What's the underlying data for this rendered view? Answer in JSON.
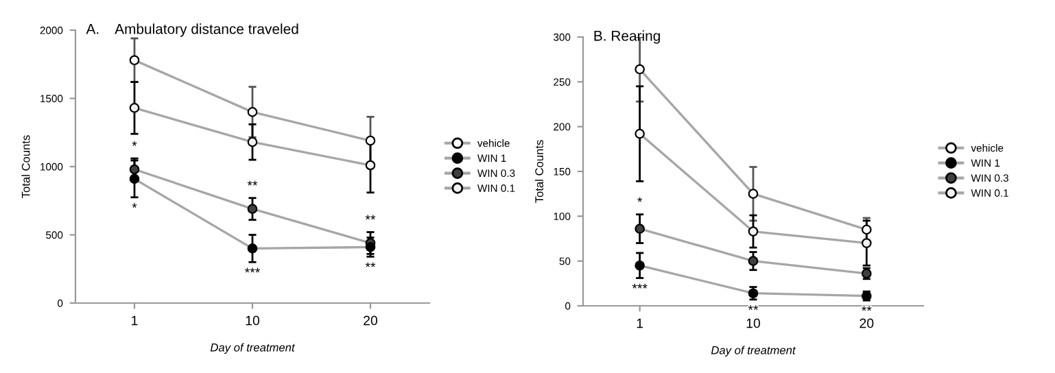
{
  "chart_data": [
    {
      "type": "line",
      "title": "A.    Ambulatory distance traveled",
      "xlabel": "Day of treatment",
      "ylabel": "Total Counts",
      "categories": [
        "1",
        "10",
        "20"
      ],
      "ylim": [
        0,
        2000
      ],
      "yticks": [
        0,
        500,
        1000,
        1500,
        2000
      ],
      "grid": false,
      "legend": "right",
      "marker": "circle",
      "line_style": "solid",
      "series": [
        {
          "name": "vehicle",
          "color": "#a6a6a6",
          "colors": [
            "#ffffff",
            "#ffffff",
            "#ffffff"
          ],
          "values": [
            1780,
            1400,
            1190
          ],
          "errors": [
            160,
            185,
            175
          ]
        },
        {
          "name": "WIN 1",
          "color": "#a6a6a6",
          "colors": [
            "#000000",
            "#000000",
            "#000000"
          ],
          "values": [
            910,
            400,
            410
          ],
          "errors": [
            135,
            100,
            70
          ]
        },
        {
          "name": "WIN 0.3",
          "color": "#a6a6a6",
          "colors": [
            "#404040",
            "#404040",
            "#404040"
          ],
          "values": [
            980,
            690,
            440
          ],
          "errors": [
            80,
            80,
            80
          ]
        },
        {
          "name": "WIN 0.1",
          "color": "#a6a6a6",
          "colors": [
            "#f2f2f2",
            "#f2f2f2",
            "#f2f2f2"
          ],
          "values": [
            1430,
            1180,
            1010
          ],
          "errors": [
            190,
            130,
            200
          ]
        }
      ],
      "annotations": [
        {
          "text": "*",
          "x": "1",
          "y": 1060
        },
        {
          "text": "*",
          "x": "1",
          "y": 775
        },
        {
          "text": "**",
          "x": "10",
          "y": 770
        },
        {
          "text": "***",
          "x": "10",
          "y": 300
        },
        {
          "text": "**",
          "x": "20",
          "y": 520
        },
        {
          "text": "**",
          "x": "20",
          "y": 340
        }
      ]
    },
    {
      "type": "line",
      "title": "B. Rearing",
      "xlabel": "Day of treatment",
      "ylabel": "Total Counts",
      "categories": [
        "1",
        "10",
        "20"
      ],
      "ylim": [
        0,
        300
      ],
      "yticks": [
        0,
        50,
        100,
        150,
        200,
        250,
        300
      ],
      "grid": false,
      "legend": "right",
      "marker": "circle",
      "line_style": "solid",
      "series": [
        {
          "name": "vehicle",
          "color": "#a6a6a6",
          "colors": [
            "#ffffff",
            "#ffffff",
            "#ffffff"
          ],
          "values": [
            264,
            125,
            85
          ],
          "errors": [
            36,
            30,
            13
          ]
        },
        {
          "name": "WIN 1",
          "color": "#a6a6a6",
          "colors": [
            "#000000",
            "#000000",
            "#000000"
          ],
          "values": [
            45,
            14,
            11
          ],
          "errors": [
            14,
            7,
            5
          ]
        },
        {
          "name": "WIN 0.3",
          "color": "#a6a6a6",
          "colors": [
            "#404040",
            "#404040",
            "#404040"
          ],
          "values": [
            86,
            50,
            36
          ],
          "errors": [
            16,
            10,
            6
          ]
        },
        {
          "name": "WIN 0.1",
          "color": "#a6a6a6",
          "colors": [
            "#f2f2f2",
            "#f2f2f2",
            "#f2f2f2"
          ],
          "values": [
            192,
            83,
            70
          ],
          "errors": [
            53,
            18,
            25
          ]
        }
      ],
      "annotations": [
        {
          "text": "*",
          "x": "1",
          "y": 102
        },
        {
          "text": "***",
          "x": "1",
          "y": 31
        },
        {
          "text": "**",
          "x": "10",
          "y": 7
        },
        {
          "text": "**",
          "x": "20",
          "y": 6
        }
      ]
    }
  ]
}
